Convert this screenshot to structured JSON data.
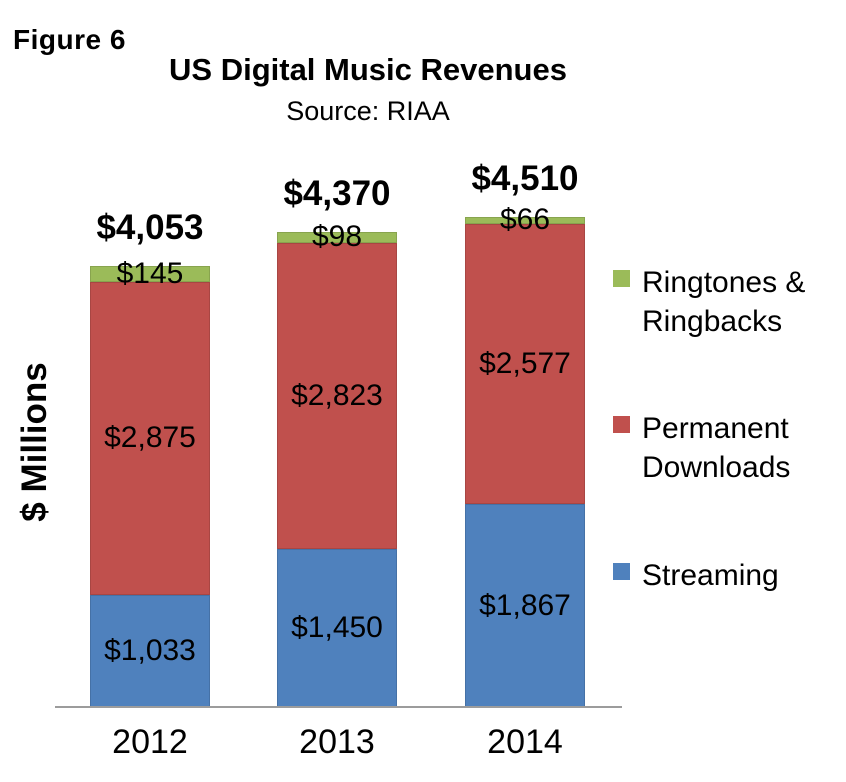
{
  "figure_label": "Figure 6",
  "chart_data": {
    "type": "bar",
    "stacked": true,
    "title": "US Digital Music Revenues",
    "subtitle": "Source: RIAA",
    "ylabel": "$ Millions",
    "xlabel": "",
    "categories": [
      "2012",
      "2013",
      "2014"
    ],
    "series": [
      {
        "name": "Streaming",
        "color": "#4F81BD",
        "values": [
          1033,
          1450,
          1867
        ],
        "value_labels": [
          "$1,033",
          "$1,450",
          "$1,867"
        ]
      },
      {
        "name": "Permanent Downloads",
        "color": "#C0504D",
        "values": [
          2875,
          2823,
          2577
        ],
        "value_labels": [
          "$2,875",
          "$2,823",
          "$2,577"
        ]
      },
      {
        "name": "Ringtones & Ringbacks",
        "color": "#9BBB59",
        "values": [
          145,
          98,
          66
        ],
        "value_labels": [
          "$145",
          "$98",
          "$66"
        ]
      }
    ],
    "totals": [
      4053,
      4370,
      4510
    ],
    "total_labels": [
      "$4,053",
      "$4,370",
      "$4,510"
    ],
    "legend": {
      "position": "right",
      "entries": [
        {
          "name": "Ringtones & Ringbacks",
          "lines": [
            "Ringtones &",
            "Ringbacks"
          ],
          "color": "#9BBB59"
        },
        {
          "name": "Permanent Downloads",
          "lines": [
            "Permanent",
            "Downloads"
          ],
          "color": "#C0504D"
        },
        {
          "name": "Streaming",
          "lines": [
            "Streaming"
          ],
          "color": "#4F81BD"
        }
      ]
    },
    "grid": false,
    "ylim": [
      0,
      4600
    ],
    "axis_line_color": "#9c9c9c"
  }
}
